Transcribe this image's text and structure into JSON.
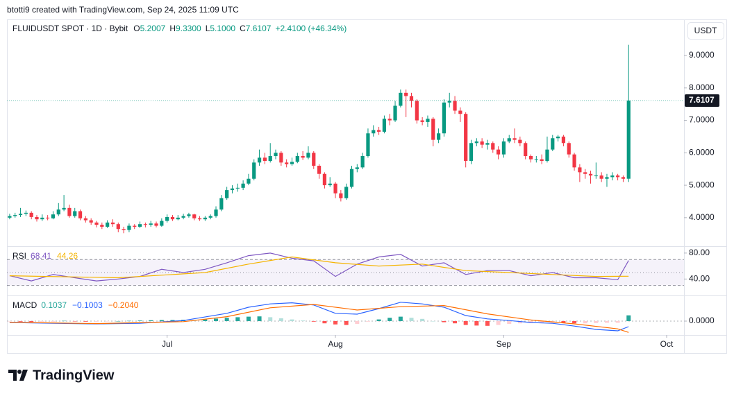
{
  "chart_data": {
    "type": "candlestick",
    "header": "btotti9 created with TradingView.com, Sep 24, 2025 11:09 UTC",
    "brand": "TradingView",
    "legend": {
      "symbol": "FLUIDUSDT SPOT · 1D · Bybit",
      "items": [
        {
          "key": "O",
          "value": "5.2007"
        },
        {
          "key": "H",
          "value": "9.3300"
        },
        {
          "key": "L",
          "value": "5.1000"
        },
        {
          "key": "C",
          "value": "7.6107"
        },
        {
          "key": "",
          "value": "+2.4100 (+46.34%)"
        }
      ]
    },
    "currency": "USDT",
    "last_price_label": "7.6107",
    "up_color": "#089981",
    "down_color": "#f23645",
    "grid": false,
    "xlim": [
      -0.5,
      124.2
    ],
    "xticks": [
      {
        "value": 29,
        "label": "Jul"
      },
      {
        "value": 60,
        "label": "Aug"
      },
      {
        "value": 91,
        "label": "Sep"
      },
      {
        "value": 121,
        "label": "Oct"
      }
    ],
    "ylim": [
      3.12,
      10.07
    ],
    "yticks": [
      {
        "value": 4,
        "label": "4.0000"
      },
      {
        "value": 5,
        "label": "5.0000"
      },
      {
        "value": 6,
        "label": "6.0000"
      },
      {
        "value": 7,
        "label": "7.0000"
      },
      {
        "value": 8,
        "label": "8.0000"
      },
      {
        "value": 9,
        "label": "9.0000"
      }
    ],
    "open": [
      4.0,
      4.05,
      4.08,
      4.12,
      4.15,
      4.02,
      3.95,
      4.0,
      3.98,
      4.1,
      4.25,
      4.3,
      4.05,
      4.2,
      3.98,
      3.92,
      3.85,
      3.78,
      3.72,
      3.85,
      3.8,
      3.65,
      3.62,
      3.75,
      3.72,
      3.8,
      3.78,
      3.82,
      3.75,
      3.9,
      4.02,
      3.95,
      4.0,
      4.05,
      4.1,
      3.98,
      3.95,
      4.0,
      4.05,
      4.25,
      4.6,
      4.85,
      4.9,
      4.92,
      5.05,
      5.2,
      5.7,
      5.85,
      5.75,
      5.9,
      6.0,
      5.7,
      5.65,
      5.72,
      5.9,
      5.85,
      6.0,
      5.6,
      5.35,
      5.0,
      5.05,
      4.75,
      4.6,
      4.95,
      5.5,
      5.55,
      5.9,
      6.6,
      6.7,
      6.65,
      7.05,
      7.0,
      7.45,
      7.85,
      7.75,
      7.6,
      7.0,
      6.95,
      7.05,
      6.4,
      6.6,
      7.55,
      7.6,
      7.3,
      7.2,
      5.75,
      6.3,
      6.35,
      6.25,
      6.3,
      6.1,
      5.95,
      6.35,
      6.45,
      6.4,
      6.3,
      5.9,
      5.8,
      5.8,
      5.75,
      6.1,
      6.45,
      6.5,
      6.3,
      5.95,
      5.55,
      5.4,
      5.35,
      5.3,
      5.3,
      5.2,
      5.25,
      5.3,
      5.25,
      5.2007
    ],
    "high": [
      4.12,
      4.15,
      4.3,
      4.22,
      4.2,
      4.08,
      4.1,
      4.08,
      4.2,
      4.45,
      4.7,
      4.4,
      4.3,
      4.25,
      4.05,
      3.98,
      3.9,
      3.85,
      3.92,
      3.95,
      3.85,
      3.72,
      3.82,
      3.8,
      3.88,
      3.85,
      3.9,
      3.88,
      3.98,
      4.1,
      4.08,
      4.08,
      4.12,
      4.15,
      4.12,
      4.05,
      4.05,
      4.1,
      4.35,
      4.7,
      4.95,
      5.0,
      5.05,
      5.15,
      5.35,
      5.8,
      6.1,
      6.0,
      6.3,
      6.1,
      6.05,
      5.8,
      5.85,
      6.0,
      6.05,
      6.2,
      6.05,
      5.65,
      5.4,
      5.25,
      5.1,
      4.85,
      5.05,
      5.6,
      5.65,
      6.0,
      6.75,
      6.85,
      6.8,
      7.15,
      7.2,
      7.6,
      7.95,
      7.95,
      7.85,
      7.65,
      7.1,
      7.15,
      7.1,
      6.75,
      7.65,
      7.85,
      7.75,
      7.4,
      7.25,
      6.4,
      6.45,
      6.45,
      6.4,
      6.35,
      6.2,
      6.45,
      6.55,
      6.75,
      6.5,
      6.35,
      5.95,
      5.9,
      5.95,
      6.5,
      6.55,
      6.55,
      6.55,
      6.35,
      6.0,
      5.65,
      5.5,
      5.45,
      5.7,
      5.4,
      5.35,
      5.4,
      5.35,
      5.3,
      9.33
    ],
    "low": [
      3.95,
      4.0,
      4.02,
      4.05,
      3.95,
      3.88,
      3.9,
      3.92,
      3.95,
      4.05,
      4.2,
      4.0,
      4.0,
      3.92,
      3.85,
      3.78,
      3.7,
      3.65,
      3.68,
      3.72,
      3.55,
      3.52,
      3.55,
      3.65,
      3.68,
      3.7,
      3.72,
      3.7,
      3.72,
      3.85,
      3.9,
      3.92,
      3.95,
      4.0,
      3.92,
      3.9,
      3.9,
      3.95,
      4.0,
      4.2,
      4.55,
      4.75,
      4.8,
      4.85,
      5.0,
      5.15,
      5.6,
      5.65,
      5.7,
      5.8,
      5.6,
      5.55,
      5.6,
      5.68,
      5.78,
      5.8,
      5.5,
      5.2,
      4.9,
      4.95,
      4.6,
      4.5,
      4.55,
      4.9,
      5.4,
      5.5,
      5.85,
      6.5,
      6.55,
      6.6,
      6.85,
      6.95,
      7.4,
      7.1,
      7.4,
      6.9,
      6.85,
      6.8,
      6.2,
      6.3,
      6.5,
      7.4,
      7.2,
      6.95,
      5.55,
      5.65,
      6.2,
      6.15,
      6.1,
      6.0,
      5.8,
      5.85,
      6.3,
      6.3,
      6.2,
      5.8,
      5.7,
      5.7,
      5.65,
      5.7,
      6.05,
      6.35,
      6.2,
      5.85,
      5.45,
      5.1,
      5.2,
      5.05,
      5.2,
      5.1,
      4.95,
      5.15,
      5.15,
      5.1,
      5.1
    ],
    "close": [
      4.05,
      4.08,
      4.12,
      4.15,
      4.02,
      3.95,
      4.0,
      3.98,
      4.1,
      4.25,
      4.3,
      4.05,
      4.2,
      3.98,
      3.92,
      3.85,
      3.78,
      3.72,
      3.85,
      3.8,
      3.65,
      3.62,
      3.75,
      3.72,
      3.8,
      3.78,
      3.82,
      3.75,
      3.9,
      4.02,
      3.95,
      4.0,
      4.05,
      4.1,
      3.98,
      3.95,
      4.0,
      4.05,
      4.25,
      4.6,
      4.85,
      4.9,
      4.92,
      5.05,
      5.2,
      5.7,
      5.85,
      5.75,
      5.9,
      6.0,
      5.7,
      5.65,
      5.72,
      5.9,
      5.85,
      6.0,
      5.6,
      5.35,
      5.0,
      5.05,
      4.75,
      4.6,
      4.95,
      5.5,
      5.55,
      5.9,
      6.6,
      6.7,
      6.65,
      7.05,
      7.0,
      7.45,
      7.85,
      7.75,
      7.6,
      7.0,
      6.95,
      7.05,
      6.4,
      6.6,
      7.55,
      7.6,
      7.3,
      7.2,
      5.75,
      6.3,
      6.35,
      6.25,
      6.3,
      6.1,
      5.95,
      6.35,
      6.45,
      6.4,
      6.3,
      5.9,
      5.8,
      5.8,
      5.75,
      6.1,
      6.45,
      6.5,
      6.3,
      5.95,
      5.55,
      5.4,
      5.35,
      5.3,
      5.3,
      5.2,
      5.25,
      5.3,
      5.25,
      5.2,
      7.6107
    ],
    "rsi": {
      "title": "RSI",
      "ylim": [
        14.7,
        89.5
      ],
      "yticks": [
        {
          "value": 80,
          "label": "80.00"
        },
        {
          "value": 40,
          "label": "40.00"
        }
      ],
      "bands": [
        70,
        50,
        30
      ],
      "band_color": "#7e57c2",
      "series": [
        {
          "type": "line",
          "color": "#7e57c2",
          "value_label": "68.41",
          "x": [
            0,
            4,
            8,
            12,
            16,
            20,
            24,
            28,
            32,
            36,
            40,
            44,
            48,
            52,
            56,
            60,
            64,
            68,
            72,
            76,
            80,
            84,
            88,
            92,
            96,
            100,
            104,
            108,
            112,
            114
          ],
          "values": [
            45,
            37,
            47,
            42,
            37,
            40,
            44,
            55,
            50,
            55,
            65,
            76,
            80,
            72,
            68,
            44,
            63,
            74,
            78,
            60,
            65,
            47,
            53,
            53,
            45,
            50,
            42,
            42,
            39,
            68.41
          ]
        },
        {
          "type": "line",
          "color": "#f5b400",
          "value_label": "44.26",
          "x": [
            0,
            20,
            36,
            44,
            52,
            60,
            68,
            76,
            84,
            92,
            100,
            108,
            114
          ],
          "values": [
            45,
            42,
            50,
            63,
            74,
            65,
            60,
            63,
            53,
            50,
            47,
            44,
            44.26
          ]
        }
      ]
    },
    "macd": {
      "title": "MACD",
      "ylim": [
        -0.25,
        0.45
      ],
      "yticks": [
        {
          "value": 0,
          "label": "0.0000"
        }
      ],
      "series": [
        {
          "type": "bar",
          "color": "#26a69a",
          "down_color": "#ff5252",
          "value_label": "0.1037",
          "x": [
            0,
            2,
            4,
            6,
            8,
            10,
            12,
            14,
            16,
            18,
            20,
            22,
            24,
            26,
            28,
            30,
            32,
            34,
            36,
            38,
            40,
            42,
            44,
            46,
            48,
            50,
            52,
            54,
            56,
            58,
            60,
            62,
            64,
            66,
            68,
            70,
            72,
            74,
            76,
            78,
            80,
            82,
            84,
            86,
            88,
            90,
            92,
            94,
            96,
            98,
            100,
            102,
            104,
            106,
            108,
            110,
            112,
            114
          ],
          "values": [
            -0.005,
            -0.01,
            -0.015,
            -0.01,
            -0.01,
            0.005,
            -0.005,
            -0.01,
            -0.01,
            -0.005,
            0.0,
            0.005,
            0.01,
            0.015,
            0.02,
            0.02,
            0.025,
            0.02,
            0.03,
            0.045,
            0.06,
            0.07,
            0.08,
            0.085,
            0.07,
            0.05,
            0.03,
            0.01,
            -0.01,
            -0.04,
            -0.06,
            -0.07,
            -0.05,
            -0.01,
            0.03,
            0.06,
            0.08,
            0.06,
            0.04,
            0.0,
            -0.02,
            -0.04,
            -0.07,
            -0.08,
            -0.085,
            -0.07,
            -0.05,
            -0.04,
            -0.035,
            -0.03,
            -0.025,
            -0.03,
            -0.04,
            -0.04,
            -0.035,
            -0.03,
            -0.03,
            0.1037
          ]
        },
        {
          "type": "line",
          "color": "#2962ff",
          "value_label": "−0.1003",
          "x": [
            0,
            8,
            16,
            24,
            32,
            40,
            44,
            48,
            52,
            56,
            60,
            64,
            68,
            72,
            76,
            80,
            84,
            88,
            92,
            96,
            100,
            104,
            108,
            112,
            114
          ],
          "values": [
            -0.025,
            -0.04,
            -0.05,
            -0.04,
            0.01,
            0.14,
            0.25,
            0.31,
            0.33,
            0.29,
            0.14,
            0.125,
            0.225,
            0.34,
            0.31,
            0.25,
            0.1,
            0.04,
            0.01,
            -0.025,
            -0.04,
            -0.09,
            -0.15,
            -0.175,
            -0.1003
          ]
        },
        {
          "type": "line",
          "color": "#ff6d00",
          "value_label": "−0.2040",
          "x": [
            0,
            16,
            32,
            40,
            48,
            56,
            64,
            72,
            80,
            88,
            96,
            104,
            112,
            114
          ],
          "values": [
            -0.02,
            -0.045,
            -0.01,
            0.08,
            0.24,
            0.3,
            0.2,
            0.26,
            0.28,
            0.13,
            0.02,
            -0.05,
            -0.14,
            -0.204
          ]
        }
      ]
    }
  }
}
